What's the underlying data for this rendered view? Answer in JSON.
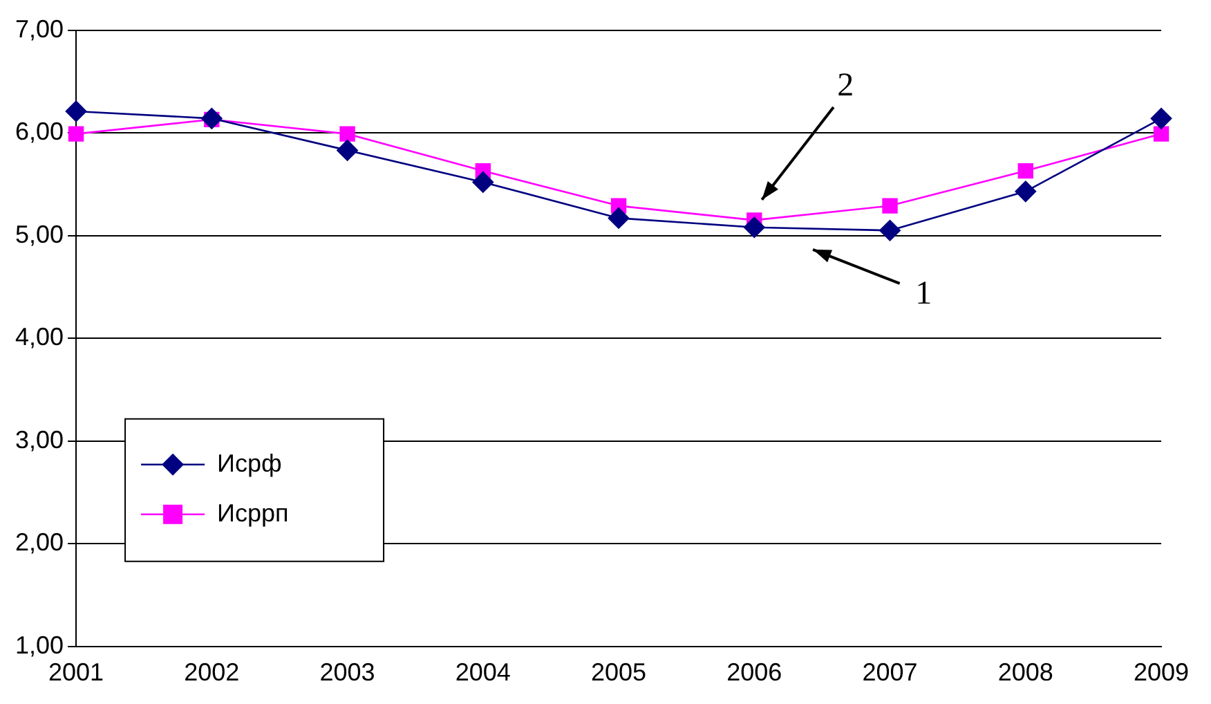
{
  "chart_data": {
    "type": "line",
    "categories": [
      "2001",
      "2002",
      "2003",
      "2004",
      "2005",
      "2006",
      "2007",
      "2008",
      "2009"
    ],
    "series": [
      {
        "name": "Исрф",
        "color": "#000080",
        "marker": "diamond",
        "values": [
          6.21,
          6.14,
          5.83,
          5.52,
          5.17,
          5.08,
          5.05,
          5.43,
          6.14
        ]
      },
      {
        "name": "Исррп",
        "color": "#ff00ff",
        "marker": "square",
        "values": [
          5.99,
          6.13,
          5.99,
          5.63,
          5.29,
          5.15,
          5.29,
          5.63,
          5.99
        ]
      }
    ],
    "ylim": [
      1,
      7
    ],
    "yticks": [
      {
        "value": 1,
        "label": "1,00"
      },
      {
        "value": 2,
        "label": "2,00"
      },
      {
        "value": 3,
        "label": "3,00"
      },
      {
        "value": 4,
        "label": "4,00"
      },
      {
        "value": 5,
        "label": "5,00"
      },
      {
        "value": 6,
        "label": "6,00"
      },
      {
        "value": 7,
        "label": "7,00"
      }
    ],
    "grid": "y",
    "legend": "bottom left",
    "line_style": "solid",
    "annotations": [
      "2",
      "1"
    ]
  }
}
